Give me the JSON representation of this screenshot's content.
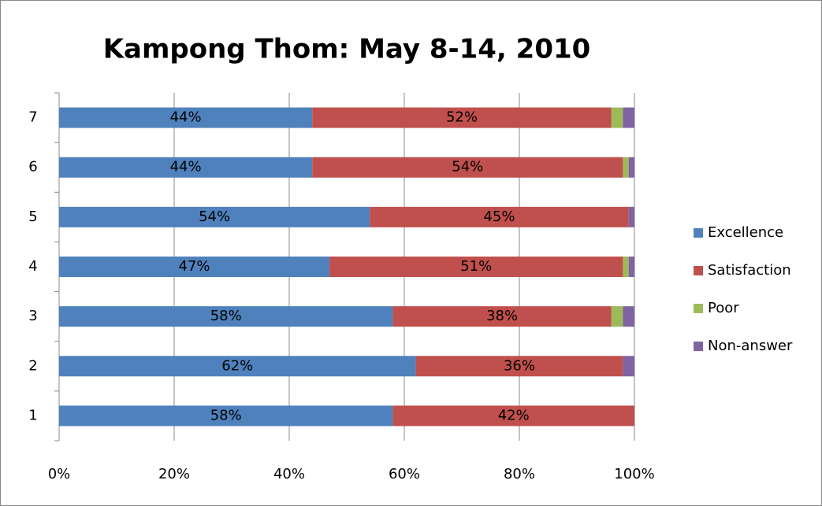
{
  "chart_data": {
    "type": "stacked_bar_horizontal",
    "title": "Kampong Thom: May 8-14, 2010",
    "categories": [
      "1",
      "2",
      "3",
      "4",
      "5",
      "6",
      "7"
    ],
    "series": [
      {
        "name": "Excellence",
        "color": "#4f81bd",
        "values": [
          58,
          62,
          58,
          47,
          54,
          44,
          44
        ],
        "value_labels": [
          "58%",
          "62%",
          "58%",
          "47%",
          "54%",
          "44%",
          "44%"
        ]
      },
      {
        "name": "Satisfaction",
        "color": "#c0504d",
        "values": [
          42,
          36,
          38,
          51,
          45,
          54,
          52
        ],
        "value_labels": [
          "42%",
          "36%",
          "38%",
          "51%",
          "45%",
          "54%",
          "52%"
        ]
      },
      {
        "name": "Poor",
        "color": "#9bbb59",
        "values": [
          0,
          0,
          2,
          1,
          0,
          1,
          2
        ]
      },
      {
        "name": "Non-answer",
        "color": "#8064a2",
        "values": [
          0,
          2,
          2,
          1,
          1,
          1,
          2
        ]
      }
    ],
    "xlim": [
      0,
      100
    ],
    "xticks": [
      {
        "value": 0,
        "label": "0%"
      },
      {
        "value": 20,
        "label": "20%"
      },
      {
        "value": 40,
        "label": "40%"
      },
      {
        "value": 60,
        "label": "60%"
      },
      {
        "value": 80,
        "label": "80%"
      },
      {
        "value": 100,
        "label": "100%"
      }
    ],
    "grid": true,
    "legend": "right"
  }
}
